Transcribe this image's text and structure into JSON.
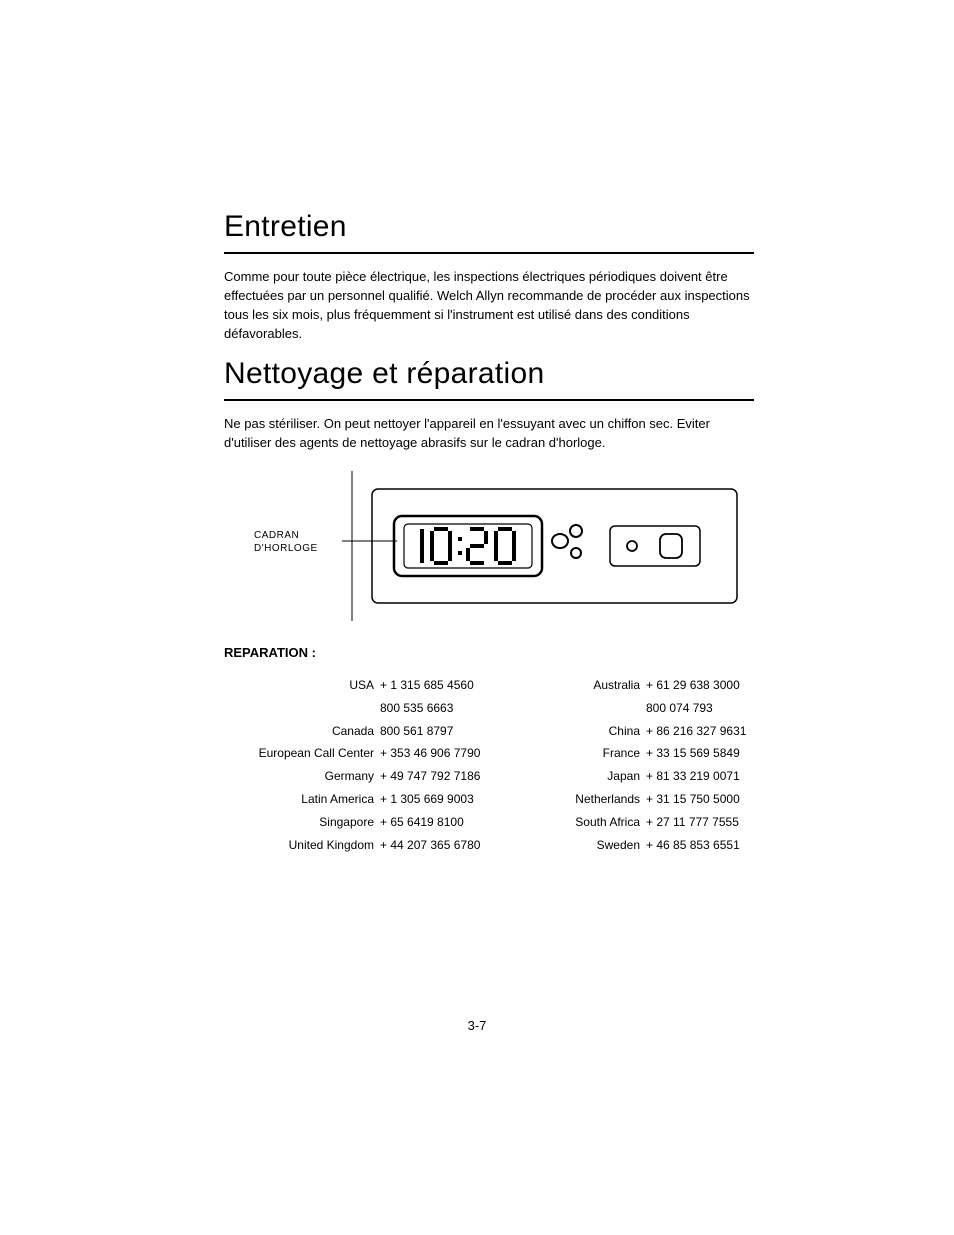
{
  "headings": {
    "h1a": "Entretien",
    "h1b": "Nettoyage et réparation"
  },
  "paragraphs": {
    "p1": "Comme pour toute pièce électrique, les inspections électriques périodiques doivent être effectuées par un personnel qualifié. Welch Allyn recommande de procéder aux inspections tous les six mois, plus fréquemment si l'instrument est utilisé dans des conditions défavorables.",
    "p2": "Ne pas stériliser. On peut nettoyer l'appareil en l'essuyant avec un chiffon sec. Eviter d'utiliser des agents de nettoyage abrasifs sur le cadran d'horloge."
  },
  "figure": {
    "label_line1": "CADRAN",
    "label_line2": "D'HORLOGE",
    "clock_time": "10:20",
    "stroke_color": "#000000",
    "bg_color": "#ffffff"
  },
  "reparation": {
    "heading": "REPARATION :",
    "left": [
      {
        "country": "USA",
        "phones": [
          "+ 1 315 685 4560",
          "800 535 6663"
        ]
      },
      {
        "country": "Canada",
        "phones": [
          "800 561 8797"
        ]
      },
      {
        "country": "European Call Center",
        "phones": [
          "+ 353 46 906 7790"
        ]
      },
      {
        "country": "Germany",
        "phones": [
          "+ 49 747 792 7186"
        ]
      },
      {
        "country": "Latin America",
        "phones": [
          "+ 1 305 669 9003"
        ]
      },
      {
        "country": "Singapore",
        "phones": [
          "+ 65 6419 8100"
        ]
      },
      {
        "country": "United Kingdom",
        "phones": [
          "+ 44 207 365 6780"
        ]
      }
    ],
    "right": [
      {
        "country": "Australia",
        "phones": [
          "+ 61 29 638 3000",
          "800 074 793"
        ]
      },
      {
        "country": "China",
        "phones": [
          "+ 86 216 327 9631"
        ]
      },
      {
        "country": "France",
        "phones": [
          "+ 33 15 569 5849"
        ]
      },
      {
        "country": "Japan",
        "phones": [
          "+ 81 33 219 0071"
        ]
      },
      {
        "country": "Netherlands",
        "phones": [
          "+ 31 15 750 5000"
        ]
      },
      {
        "country": "South Africa",
        "phones": [
          "+ 27 11 777 7555"
        ]
      },
      {
        "country": "Sweden",
        "phones": [
          "+ 46 85 853 6551"
        ]
      }
    ]
  },
  "page_number": "3-7"
}
